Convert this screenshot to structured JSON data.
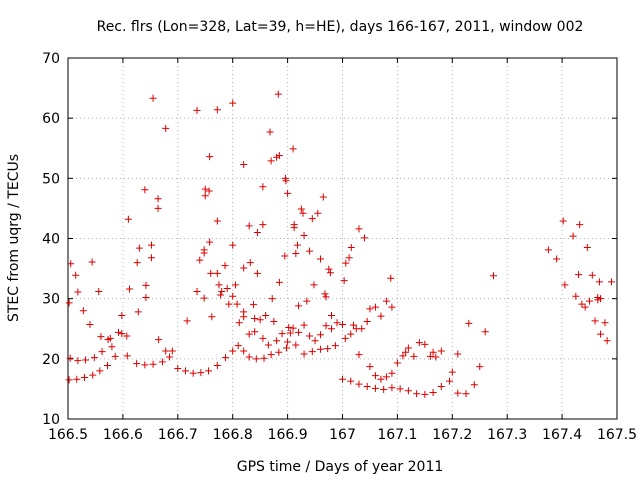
{
  "chart_data": {
    "type": "scatter",
    "title": "Rec. flrs (Lon=328, Lat=39, h=HE), days 166-167, 2011, window 002",
    "xlabel": "GPS time / Days of year 2011",
    "ylabel": "STEC from uqrg / TECUs",
    "xlim": [
      166.5,
      167.5
    ],
    "ylim": [
      10,
      70
    ],
    "xticks": [
      166.5,
      166.6,
      166.7,
      166.8,
      166.9,
      167.0,
      167.1,
      167.2,
      167.3,
      167.4,
      167.5
    ],
    "xtick_labels": [
      "166.5",
      "166.6",
      "166.7",
      "166.8",
      "166.9",
      "167",
      "167.1",
      "167.2",
      "167.3",
      "167.4",
      "167.5"
    ],
    "yticks": [
      10,
      20,
      30,
      40,
      50,
      60,
      70
    ],
    "ytick_labels": [
      "10",
      "20",
      "30",
      "40",
      "50",
      "60",
      "70"
    ],
    "grid": true,
    "marker": "+",
    "color": "#dd0000",
    "points": [
      [
        166.502,
        16.5
      ],
      [
        166.516,
        16.6
      ],
      [
        166.53,
        16.9
      ],
      [
        166.545,
        17.3
      ],
      [
        166.558,
        18.0
      ],
      [
        166.572,
        18.9
      ],
      [
        166.586,
        20.4
      ],
      [
        166.504,
        20.1
      ],
      [
        166.518,
        19.7
      ],
      [
        166.532,
        19.8
      ],
      [
        166.548,
        20.2
      ],
      [
        166.562,
        21.2
      ],
      [
        166.577,
        23.4
      ],
      [
        166.592,
        24.4
      ],
      [
        166.608,
        20.5
      ],
      [
        166.625,
        19.2
      ],
      [
        166.64,
        19.0
      ],
      [
        166.655,
        19.1
      ],
      [
        166.672,
        19.5
      ],
      [
        166.685,
        20.3
      ],
      [
        166.7,
        18.4
      ],
      [
        166.714,
        18.0
      ],
      [
        166.728,
        17.6
      ],
      [
        166.742,
        17.7
      ],
      [
        166.756,
        18.0
      ],
      [
        166.772,
        18.9
      ],
      [
        166.787,
        20.2
      ],
      [
        166.8,
        21.3
      ],
      [
        166.81,
        22.2
      ],
      [
        166.82,
        21.3
      ],
      [
        166.83,
        20.3
      ],
      [
        166.843,
        20.0
      ],
      [
        166.857,
        20.1
      ],
      [
        166.87,
        20.7
      ],
      [
        166.884,
        21.1
      ],
      [
        166.898,
        21.8
      ],
      [
        166.915,
        22.3
      ],
      [
        166.93,
        20.8
      ],
      [
        166.945,
        21.2
      ],
      [
        166.96,
        21.6
      ],
      [
        166.973,
        21.7
      ],
      [
        166.987,
        22.2
      ],
      [
        166.505,
        35.8
      ],
      [
        166.502,
        29.3
      ],
      [
        166.514,
        33.9
      ],
      [
        166.518,
        31.1
      ],
      [
        166.528,
        28.0
      ],
      [
        166.54,
        25.7
      ],
      [
        166.544,
        36.1
      ],
      [
        166.556,
        31.2
      ],
      [
        166.56,
        23.7
      ],
      [
        166.573,
        23.2
      ],
      [
        166.58,
        22.0
      ],
      [
        166.598,
        24.2
      ],
      [
        166.598,
        27.2
      ],
      [
        166.61,
        43.2
      ],
      [
        166.612,
        31.6
      ],
      [
        166.607,
        23.8
      ],
      [
        166.626,
        36.0
      ],
      [
        166.628,
        27.8
      ],
      [
        166.63,
        38.4
      ],
      [
        166.64,
        48.1
      ],
      [
        166.642,
        32.2
      ],
      [
        166.642,
        30.2
      ],
      [
        166.652,
        38.9
      ],
      [
        166.652,
        36.8
      ],
      [
        166.655,
        63.3
      ],
      [
        166.664,
        46.6
      ],
      [
        166.664,
        45.0
      ],
      [
        166.665,
        23.2
      ],
      [
        166.678,
        58.3
      ],
      [
        166.678,
        21.3
      ],
      [
        166.69,
        21.3
      ],
      [
        166.717,
        26.3
      ],
      [
        166.735,
        61.3
      ],
      [
        166.735,
        31.2
      ],
      [
        166.74,
        36.4
      ],
      [
        166.748,
        38.1
      ],
      [
        166.748,
        37.6
      ],
      [
        166.75,
        48.2
      ],
      [
        166.75,
        47.1
      ],
      [
        166.748,
        30.1
      ],
      [
        166.757,
        47.9
      ],
      [
        166.758,
        39.4
      ],
      [
        166.758,
        53.6
      ],
      [
        166.76,
        34.2
      ],
      [
        166.762,
        27.0
      ],
      [
        166.772,
        42.9
      ],
      [
        166.772,
        34.2
      ],
      [
        166.772,
        61.4
      ],
      [
        166.775,
        32.3
      ],
      [
        166.778,
        30.6
      ],
      [
        166.78,
        31.2
      ],
      [
        166.786,
        35.5
      ],
      [
        166.79,
        31.7
      ],
      [
        166.793,
        29.1
      ],
      [
        166.8,
        62.5
      ],
      [
        166.8,
        38.9
      ],
      [
        166.8,
        30.4
      ],
      [
        166.805,
        32.3
      ],
      [
        166.808,
        29.1
      ],
      [
        166.812,
        26.0
      ],
      [
        166.82,
        52.3
      ],
      [
        166.82,
        35.1
      ],
      [
        166.82,
        27.0
      ],
      [
        166.83,
        42.1
      ],
      [
        166.832,
        36.0
      ],
      [
        166.838,
        29.0
      ],
      [
        166.84,
        26.7
      ],
      [
        166.845,
        41.0
      ],
      [
        166.845,
        34.2
      ],
      [
        166.85,
        26.5
      ],
      [
        166.855,
        42.3
      ],
      [
        166.855,
        48.6
      ],
      [
        166.86,
        27.2
      ],
      [
        166.868,
        57.7
      ],
      [
        166.87,
        52.9
      ],
      [
        166.872,
        30.0
      ],
      [
        166.875,
        26.2
      ],
      [
        166.88,
        53.5
      ],
      [
        166.883,
        64.0
      ],
      [
        166.885,
        53.8
      ],
      [
        166.885,
        32.7
      ],
      [
        166.89,
        24.2
      ],
      [
        166.895,
        37.1
      ],
      [
        166.896,
        50.0
      ],
      [
        166.897,
        49.6
      ],
      [
        166.9,
        47.5
      ],
      [
        166.902,
        25.2
      ],
      [
        166.905,
        24.3
      ],
      [
        166.91,
        54.9
      ],
      [
        166.912,
        41.8
      ],
      [
        166.912,
        42.3
      ],
      [
        166.915,
        37.5
      ],
      [
        166.918,
        38.9
      ],
      [
        166.92,
        28.8
      ],
      [
        166.925,
        44.9
      ],
      [
        166.928,
        44.2
      ],
      [
        166.93,
        40.5
      ],
      [
        166.935,
        29.6
      ],
      [
        166.94,
        37.9
      ],
      [
        166.945,
        43.3
      ],
      [
        166.948,
        32.3
      ],
      [
        166.955,
        44.2
      ],
      [
        166.96,
        36.6
      ],
      [
        166.965,
        46.9
      ],
      [
        166.968,
        30.8
      ],
      [
        166.97,
        30.3
      ],
      [
        166.975,
        34.9
      ],
      [
        166.978,
        34.3
      ],
      [
        166.98,
        27.2
      ],
      [
        166.82,
        27.8
      ],
      [
        166.83,
        24.1
      ],
      [
        166.84,
        24.5
      ],
      [
        166.855,
        23.4
      ],
      [
        166.865,
        22.3
      ],
      [
        166.88,
        23.0
      ],
      [
        166.9,
        22.8
      ],
      [
        166.91,
        25.1
      ],
      [
        166.92,
        24.4
      ],
      [
        166.93,
        25.6
      ],
      [
        166.94,
        23.8
      ],
      [
        166.95,
        23.0
      ],
      [
        166.96,
        24.0
      ],
      [
        166.97,
        25.5
      ],
      [
        166.98,
        25.0
      ],
      [
        166.99,
        26.0
      ],
      [
        167.0,
        25.7
      ],
      [
        167.0,
        16.6
      ],
      [
        167.015,
        16.3
      ],
      [
        167.03,
        15.8
      ],
      [
        167.045,
        15.4
      ],
      [
        167.06,
        15.1
      ],
      [
        167.075,
        14.9
      ],
      [
        167.09,
        15.2
      ],
      [
        167.105,
        15.0
      ],
      [
        167.12,
        14.7
      ],
      [
        167.135,
        14.2
      ],
      [
        167.15,
        14.1
      ],
      [
        167.165,
        14.4
      ],
      [
        167.18,
        15.4
      ],
      [
        167.195,
        16.3
      ],
      [
        167.21,
        14.3
      ],
      [
        167.225,
        14.2
      ],
      [
        167.24,
        15.7
      ],
      [
        167.25,
        18.7
      ],
      [
        167.003,
        33.0
      ],
      [
        167.006,
        35.9
      ],
      [
        167.012,
        36.8
      ],
      [
        167.016,
        38.5
      ],
      [
        167.025,
        25.0
      ],
      [
        167.03,
        41.6
      ],
      [
        167.04,
        40.1
      ],
      [
        167.05,
        28.3
      ],
      [
        167.06,
        28.6
      ],
      [
        167.07,
        27.1
      ],
      [
        167.08,
        29.6
      ],
      [
        167.088,
        33.4
      ],
      [
        167.09,
        28.6
      ],
      [
        167.005,
        23.4
      ],
      [
        167.015,
        24.1
      ],
      [
        167.02,
        25.6
      ],
      [
        167.03,
        20.7
      ],
      [
        167.035,
        25.0
      ],
      [
        167.045,
        26.2
      ],
      [
        167.05,
        18.7
      ],
      [
        167.06,
        17.2
      ],
      [
        167.07,
        16.6
      ],
      [
        167.08,
        17.0
      ],
      [
        167.09,
        17.6
      ],
      [
        167.1,
        19.3
      ],
      [
        167.11,
        20.5
      ],
      [
        167.115,
        21.1
      ],
      [
        167.12,
        21.8
      ],
      [
        167.13,
        20.4
      ],
      [
        167.14,
        22.7
      ],
      [
        167.15,
        22.4
      ],
      [
        167.16,
        20.4
      ],
      [
        167.165,
        21.1
      ],
      [
        167.17,
        20.3
      ],
      [
        167.18,
        21.3
      ],
      [
        167.2,
        17.8
      ],
      [
        167.21,
        20.8
      ],
      [
        167.23,
        25.9
      ],
      [
        167.26,
        24.5
      ],
      [
        167.275,
        33.8
      ],
      [
        167.375,
        38.1
      ],
      [
        167.39,
        36.6
      ],
      [
        167.402,
        42.9
      ],
      [
        167.405,
        32.3
      ],
      [
        167.42,
        40.4
      ],
      [
        167.425,
        30.4
      ],
      [
        167.43,
        34.0
      ],
      [
        167.432,
        42.3
      ],
      [
        167.436,
        29.1
      ],
      [
        167.442,
        28.6
      ],
      [
        167.446,
        38.5
      ],
      [
        167.45,
        29.6
      ],
      [
        167.455,
        33.9
      ],
      [
        167.46,
        26.3
      ],
      [
        167.465,
        30.2
      ],
      [
        167.468,
        32.8
      ],
      [
        167.47,
        24.1
      ],
      [
        167.478,
        26.0
      ],
      [
        167.482,
        23.0
      ],
      [
        167.49,
        32.8
      ],
      [
        167.47,
        30.0
      ],
      [
        167.465,
        29.8
      ]
    ]
  }
}
